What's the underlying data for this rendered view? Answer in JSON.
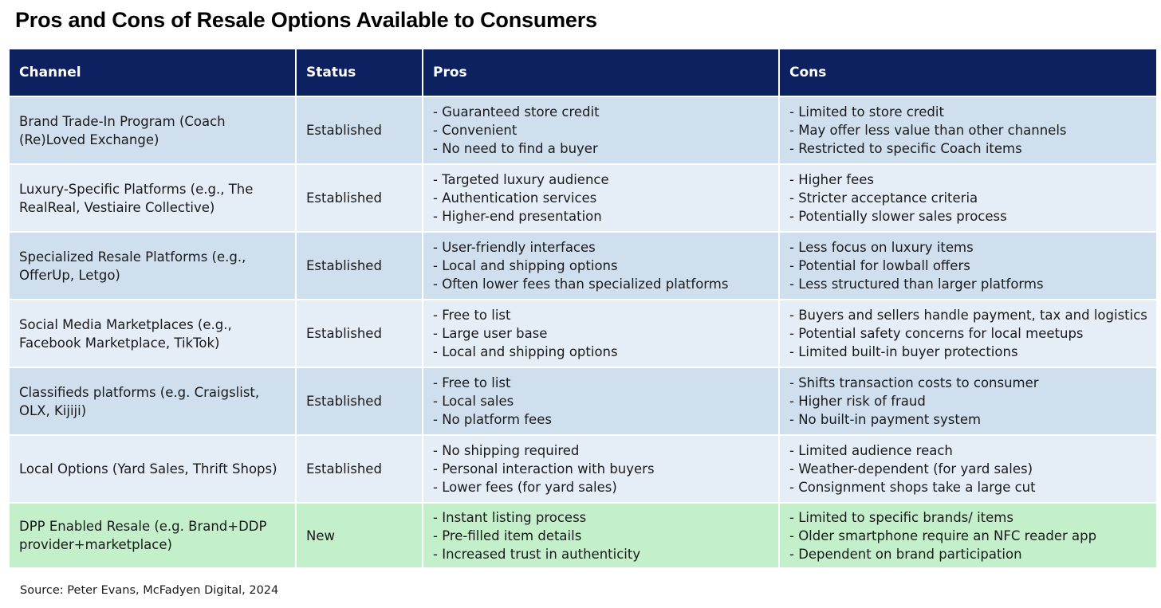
{
  "title": "Pros and Cons of Resale Options Available to Consumers",
  "table": {
    "headers": [
      "Channel",
      "Status",
      "Pros",
      "Cons"
    ],
    "rows": [
      {
        "channel": "Brand Trade-In Program (Coach (Re)Loved Exchange)",
        "status": "Established",
        "pros": [
          "- Guaranteed store credit",
          "- Convenient",
          "- No need to find a buyer"
        ],
        "cons": [
          "- Limited to store credit",
          "- May offer less value than other channels",
          "- Restricted to specific Coach items"
        ]
      },
      {
        "channel": "Luxury-Specific Platforms (e.g., The RealReal, Vestiaire Collective)",
        "status": "Established",
        "pros": [
          "- Targeted luxury audience",
          "- Authentication services",
          "- Higher-end presentation"
        ],
        "cons": [
          "- Higher fees",
          "- Stricter acceptance criteria",
          "- Potentially slower sales process"
        ]
      },
      {
        "channel": "Specialized Resale Platforms (e.g., OfferUp, Letgo)",
        "status": "Established",
        "pros": [
          "- User-friendly interfaces",
          "- Local and shipping options",
          "- Often lower fees than specialized platforms"
        ],
        "cons": [
          "- Less focus on luxury items",
          "- Potential for lowball offers",
          "- Less structured than larger platforms"
        ]
      },
      {
        "channel": "Social Media Marketplaces (e.g., Facebook Marketplace, TikTok)",
        "status": "Established",
        "pros": [
          "- Free to list",
          "- Large user base",
          "- Local and shipping options"
        ],
        "cons": [
          "- Buyers and sellers handle payment, tax and logistics",
          "- Potential safety concerns for local meetups",
          "- Limited built-in buyer protections"
        ]
      },
      {
        "channel": "Classifieds platforms (e.g. Craigslist, OLX, Kijiji)",
        "status": "Established",
        "pros": [
          "- Free to list",
          "- Local sales",
          "- No platform fees"
        ],
        "cons": [
          "- Shifts transaction costs to consumer",
          "- Higher risk of fraud",
          "- No built-in payment system"
        ]
      },
      {
        "channel": "Local Options (Yard Sales, Thrift Shops)",
        "status": "Established",
        "pros": [
          "- No shipping required",
          "- Personal interaction with buyers",
          "- Lower fees (for yard sales)"
        ],
        "cons": [
          "- Limited audience reach",
          "- Weather-dependent (for yard sales)",
          "- Consignment shops take a large cut"
        ]
      },
      {
        "channel": "DPP Enabled Resale (e.g. Brand+DDP provider+marketplace)",
        "status": "New",
        "pros": [
          "- Instant listing process",
          "- Pre-filled item details",
          "- Increased trust in authenticity"
        ],
        "cons": [
          "- Limited to specific brands/ items",
          "- Older smartphone require an NFC reader app",
          "- Dependent on brand participation"
        ]
      }
    ]
  },
  "source": "Source: Peter Evans, McFadyen Digital, 2024",
  "colors": {
    "header_bg": "#0d2060",
    "row_dark": "#cfdfee",
    "row_light": "#e5edf7",
    "row_new": "#c3efcb"
  }
}
